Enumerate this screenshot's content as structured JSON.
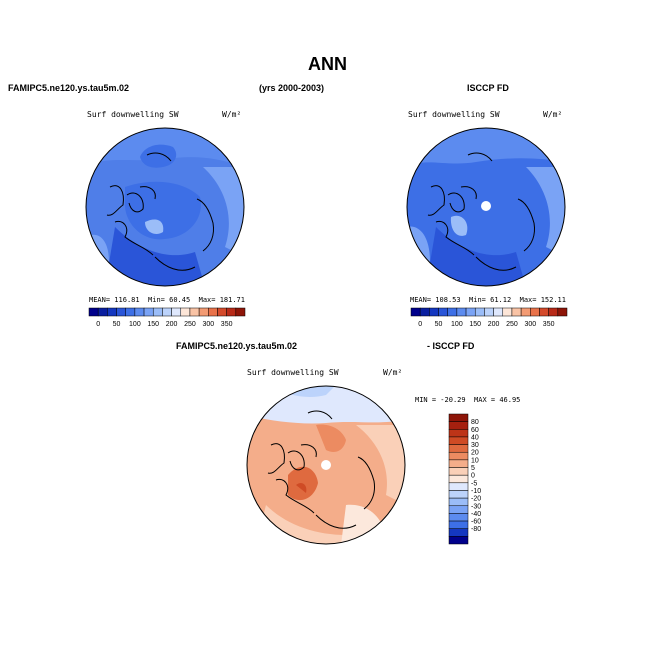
{
  "page": {
    "title": "ANN"
  },
  "headers": {
    "left": "FAMIPC5.ne120.ys.tau5m.02",
    "center": "(yrs 2000-2003)",
    "right": "ISCCP FD",
    "diff_left": "FAMIPC5.ne120.ys.tau5m.02",
    "diff_right": "- ISCCP FD"
  },
  "panels": {
    "model": {
      "variable": "Surf downwelling SW",
      "units": "W/m²",
      "stats": {
        "mean_label": "MEAN=",
        "mean": "116.81",
        "min_label": "Min=",
        "min": "60.45",
        "max_label": "Max=",
        "max": "181.71"
      }
    },
    "obs": {
      "variable": "Surf downwelling SW",
      "units": "W/m²",
      "stats": {
        "mean_label": "MEAN=",
        "mean": "108.53",
        "min_label": "Min=",
        "min": "61.12",
        "max_label": "Max=",
        "max": "152.11"
      }
    },
    "diff": {
      "variable": "Surf downwelling SW",
      "units": "W/m²",
      "stats": {
        "min_label": "MIN =",
        "min": "-20.29",
        "max_label": "MAX =",
        "max": "46.95"
      }
    }
  },
  "colorbar_abs": {
    "ticks": [
      "0",
      "50",
      "100",
      "150",
      "200",
      "250",
      "300",
      "350"
    ],
    "colors": [
      "#00008b",
      "#0a1fa0",
      "#1437c0",
      "#2a55d8",
      "#3d6fe6",
      "#5c8bef",
      "#7aa3f5",
      "#9bbdf8",
      "#bcd3fb",
      "#dfe8fd",
      "#fde6d8",
      "#f9c3a5",
      "#f39b73",
      "#e9724a",
      "#d44a2b",
      "#b82a18",
      "#8e1508"
    ]
  },
  "colorbar_diff": {
    "ticks": [
      "80",
      "60",
      "40",
      "30",
      "20",
      "10",
      "5",
      "0",
      "-5",
      "-10",
      "-20",
      "-30",
      "-40",
      "-60",
      "-80"
    ],
    "colors": [
      "#8e1508",
      "#a6200f",
      "#bd3418",
      "#cf4b25",
      "#df6a3f",
      "#ec8b61",
      "#f4ad8a",
      "#fad0b8",
      "#fce8dc",
      "#dfe8fd",
      "#bcd3fb",
      "#9bbdf8",
      "#7aa3f5",
      "#5c8bef",
      "#3d6fe6",
      "#1437c0",
      "#00008b"
    ]
  }
}
